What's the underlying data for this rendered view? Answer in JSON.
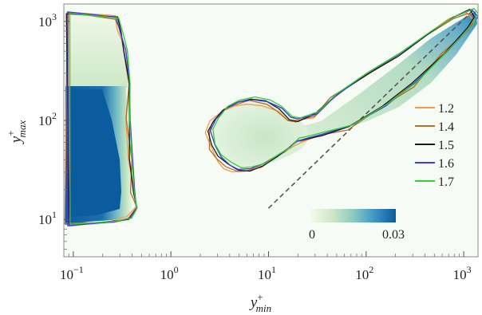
{
  "chart_data": {
    "type": "heatmap",
    "xlabel": {
      "base": "y",
      "sup": "+",
      "sub": "min"
    },
    "ylabel": {
      "base": "y",
      "sup": "+",
      "sub": "max"
    },
    "xscale": "log",
    "yscale": "log",
    "xlim": [
      0.08,
      1400
    ],
    "ylim": [
      4.2,
      1500
    ],
    "xticks": [
      {
        "value": 0.1,
        "base": "10",
        "exp": "−1"
      },
      {
        "value": 1,
        "base": "10",
        "exp": "0"
      },
      {
        "value": 10,
        "base": "10",
        "exp": "1"
      },
      {
        "value": 100,
        "base": "10",
        "exp": "2"
      },
      {
        "value": 1000,
        "base": "10",
        "exp": "3"
      }
    ],
    "yticks": [
      {
        "value": 10,
        "base": "10",
        "exp": "1"
      },
      {
        "value": 100,
        "base": "10",
        "exp": "2"
      },
      {
        "value": 1000,
        "base": "10",
        "exp": "3"
      }
    ],
    "colorbar": {
      "min_label": "0",
      "max_label": "0.03",
      "range": [
        0,
        0.03
      ],
      "colors": [
        "#f4faee",
        "#cfe8c6",
        "#8ccbc0",
        "#3f95c6",
        "#0b5c9e"
      ]
    },
    "reference_line": {
      "style": "dashed",
      "x": [
        10,
        1250
      ],
      "y": [
        13,
        1300
      ]
    },
    "series": [
      {
        "name": "1.2",
        "color": "#f39a46"
      },
      {
        "name": "1.4",
        "color": "#b46d2a"
      },
      {
        "name": "1.5",
        "color": "#1a1a1a"
      },
      {
        "name": "1.6",
        "color": "#3b3bf0"
      },
      {
        "name": "1.7",
        "color": "#33cc33"
      }
    ],
    "legend_position": "right"
  }
}
